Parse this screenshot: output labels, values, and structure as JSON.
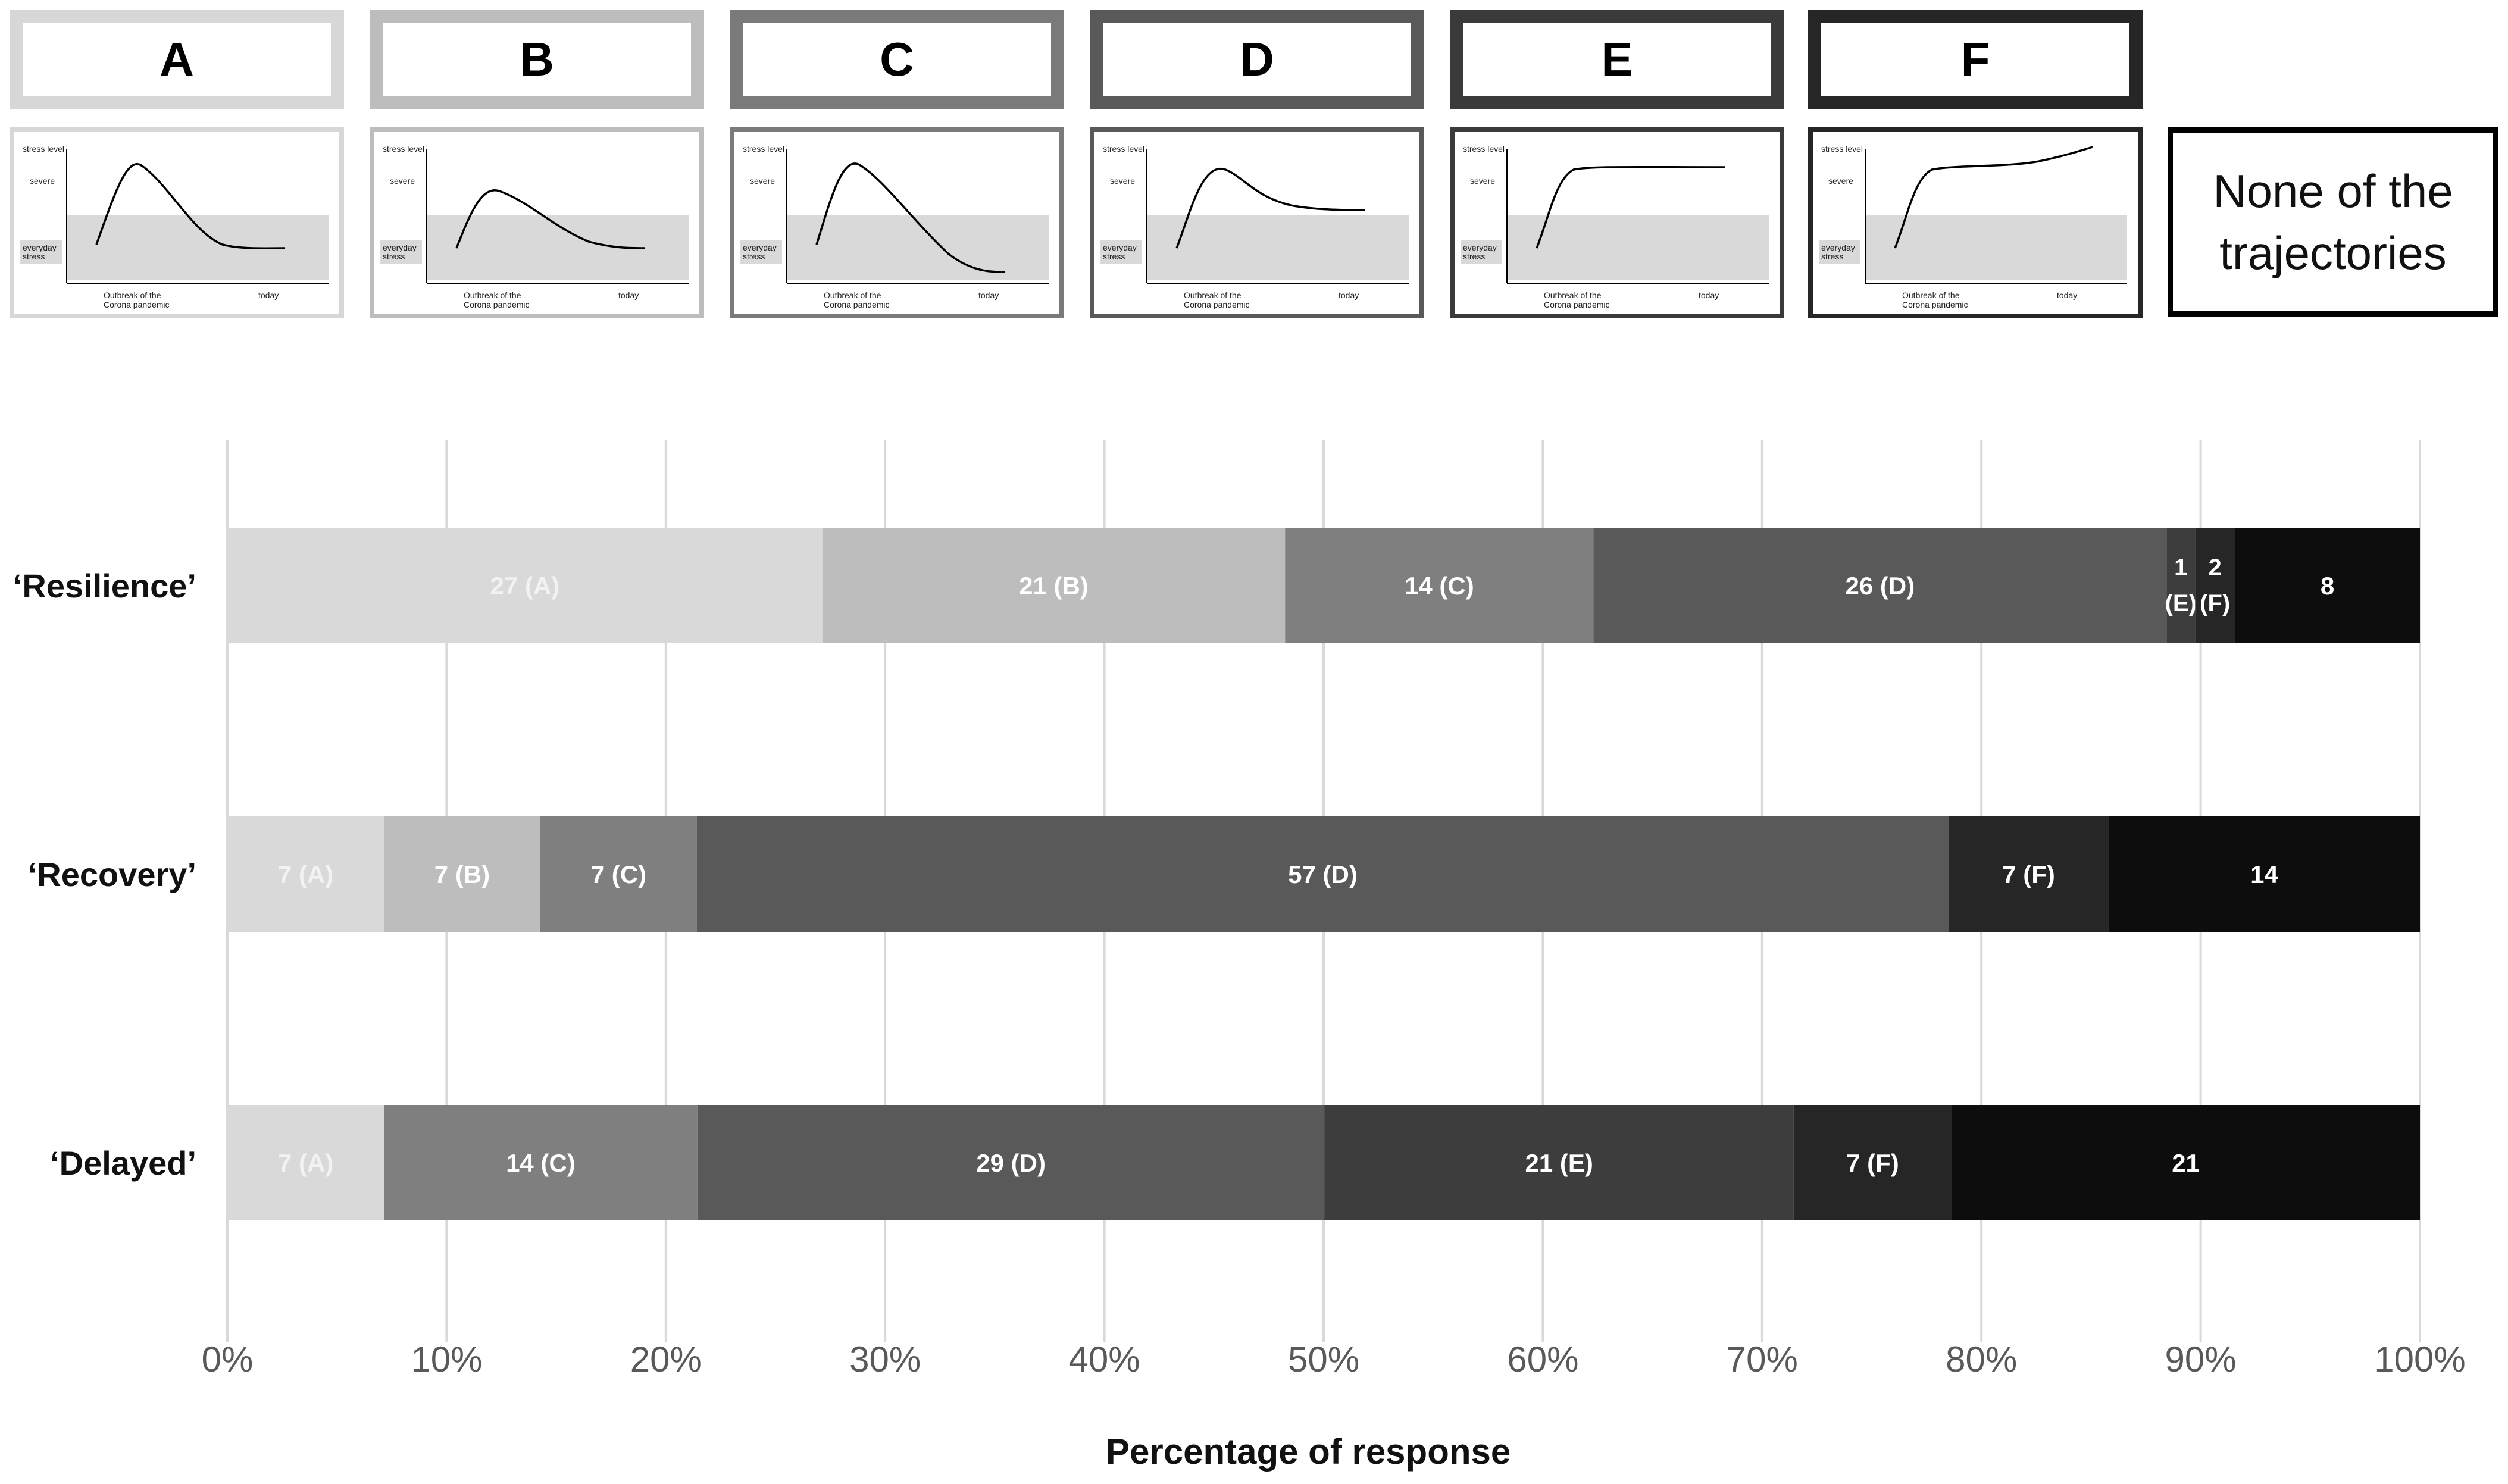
{
  "legend": {
    "items": [
      {
        "letter": "A",
        "color": "#d9d9d9",
        "border": "#d7d7d7",
        "curve": "A"
      },
      {
        "letter": "B",
        "color": "#bdbdbd",
        "border": "#bdbdbd",
        "curve": "B"
      },
      {
        "letter": "C",
        "color": "#7b7b7b",
        "border": "#7a7a7a",
        "curve": "C"
      },
      {
        "letter": "D",
        "color": "#595959",
        "border": "#595959",
        "curve": "D"
      },
      {
        "letter": "E",
        "color": "#3a3a3a",
        "border": "#3a3a3a",
        "curve": "E"
      },
      {
        "letter": "F",
        "color": "#222222",
        "border": "#262626",
        "curve": "F"
      }
    ],
    "none_label_line1": "None of the",
    "none_label_line2": "trajectories",
    "none_color": "#000000",
    "thumb_text": {
      "ylabel": "stress level",
      "severe": "severe",
      "everyday1": "everyday",
      "everyday2": "stress",
      "outbreak1": "Outbreak of the",
      "outbreak2": "Corona pandemic",
      "today": "today"
    }
  },
  "chart_data": {
    "type": "bar",
    "orientation": "horizontal-stacked-100",
    "title": "",
    "xlabel": "Percentage of response",
    "ylabel": "",
    "xlim": [
      0,
      100
    ],
    "xticks": [
      "0%",
      "10%",
      "20%",
      "30%",
      "40%",
      "50%",
      "60%",
      "70%",
      "80%",
      "90%",
      "100%"
    ],
    "grid": true,
    "categories": [
      "‘Resilience’",
      "‘Recovery’",
      "‘Delayed’"
    ],
    "rows": [
      {
        "name": "‘Resilience’",
        "segments": [
          {
            "key": "A",
            "value": 27,
            "l1": "27 (A)",
            "l2": ""
          },
          {
            "key": "B",
            "value": 21,
            "l1": "21 (B)",
            "l2": ""
          },
          {
            "key": "C",
            "value": 14,
            "l1": "14 (C)",
            "l2": ""
          },
          {
            "key": "D",
            "value": 26,
            "l1": "26 (D)",
            "l2": ""
          },
          {
            "key": "E",
            "value": 1.3,
            "l1": "1",
            "l2": "(E)"
          },
          {
            "key": "F",
            "value": 1.8,
            "l1": "2",
            "l2": "(F)"
          },
          {
            "key": "N",
            "value": 8.4,
            "l1": "8",
            "l2": ""
          }
        ]
      },
      {
        "name": "‘Recovery’",
        "segments": [
          {
            "key": "A",
            "value": 7.14,
            "l1": "7 (A)",
            "l2": ""
          },
          {
            "key": "B",
            "value": 7.14,
            "l1": "7 (B)",
            "l2": ""
          },
          {
            "key": "C",
            "value": 7.14,
            "l1": "7 (C)",
            "l2": ""
          },
          {
            "key": "D",
            "value": 57.1,
            "l1": "57 (D)",
            "l2": ""
          },
          {
            "key": "F",
            "value": 7.3,
            "l1": "7 (F)",
            "l2": ""
          },
          {
            "key": "N",
            "value": 14.2,
            "l1": "14",
            "l2": ""
          }
        ]
      },
      {
        "name": "‘Delayed’",
        "segments": [
          {
            "key": "A",
            "value": 7.14,
            "l1": "7 (A)",
            "l2": ""
          },
          {
            "key": "C",
            "value": 14.3,
            "l1": "14 (C)",
            "l2": ""
          },
          {
            "key": "D",
            "value": 28.6,
            "l1": "29 (D)",
            "l2": ""
          },
          {
            "key": "E",
            "value": 21.4,
            "l1": "21 (E)",
            "l2": ""
          },
          {
            "key": "F",
            "value": 7.2,
            "l1": "7 (F)",
            "l2": ""
          },
          {
            "key": "N",
            "value": 21.36,
            "l1": "21",
            "l2": ""
          }
        ]
      }
    ],
    "colors": {
      "A": "#d9d9d9",
      "B": "#bdbdbd",
      "C": "#7f7f7f",
      "D": "#595959",
      "E": "#3d3d3d",
      "F": "#262626",
      "N": "#0d0d0d"
    },
    "label_colors": {
      "A": "#f2f2f2",
      "B": "#ffffff",
      "C": "#ffffff",
      "D": "#ffffff",
      "E": "#ffffff",
      "F": "#ffffff",
      "N": "#ffffff"
    }
  }
}
